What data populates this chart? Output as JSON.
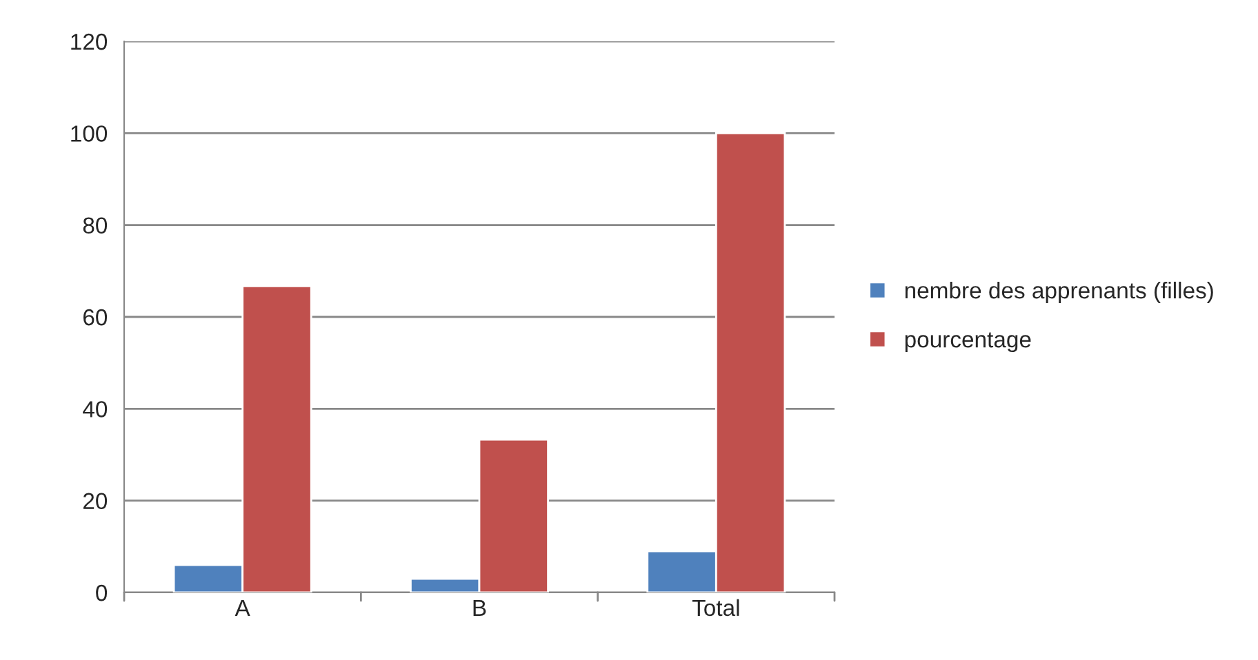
{
  "chart_data": {
    "type": "bar",
    "categories": [
      "A",
      "B",
      "Total"
    ],
    "series": [
      {
        "name": "nembre des apprenants (filles)",
        "color": "#4f81bd",
        "values": [
          6,
          3,
          9
        ]
      },
      {
        "name": "pourcentage",
        "color": "#c0504d",
        "values": [
          66.7,
          33.3,
          100
        ]
      }
    ],
    "ylim": [
      0,
      120
    ],
    "yticks": [
      0,
      20,
      40,
      60,
      80,
      100,
      120
    ],
    "grid": "y",
    "legend": "right"
  }
}
